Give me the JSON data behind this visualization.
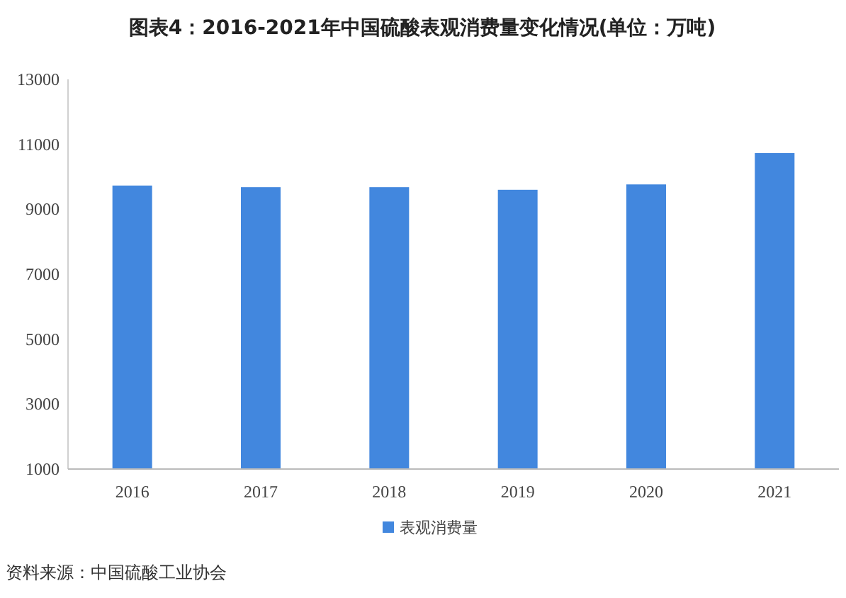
{
  "chart_data": {
    "type": "bar",
    "title": "图表4：2016-2021年中国硫酸表观消费量变化情况(单位：万吨)",
    "categories": [
      "2016",
      "2017",
      "2018",
      "2019",
      "2020",
      "2021"
    ],
    "series": [
      {
        "name": "表观消费量",
        "color": "#4287de",
        "values": [
          9730,
          9680,
          9680,
          9600,
          9765,
          10730
        ]
      }
    ],
    "ylim": [
      1000,
      13000
    ],
    "yticks": [
      1000,
      3000,
      5000,
      7000,
      9000,
      11000,
      13000
    ],
    "legend": "bottom",
    "grid": false,
    "annotations": [
      "资料来源：中国硫酸工业协会"
    ]
  }
}
